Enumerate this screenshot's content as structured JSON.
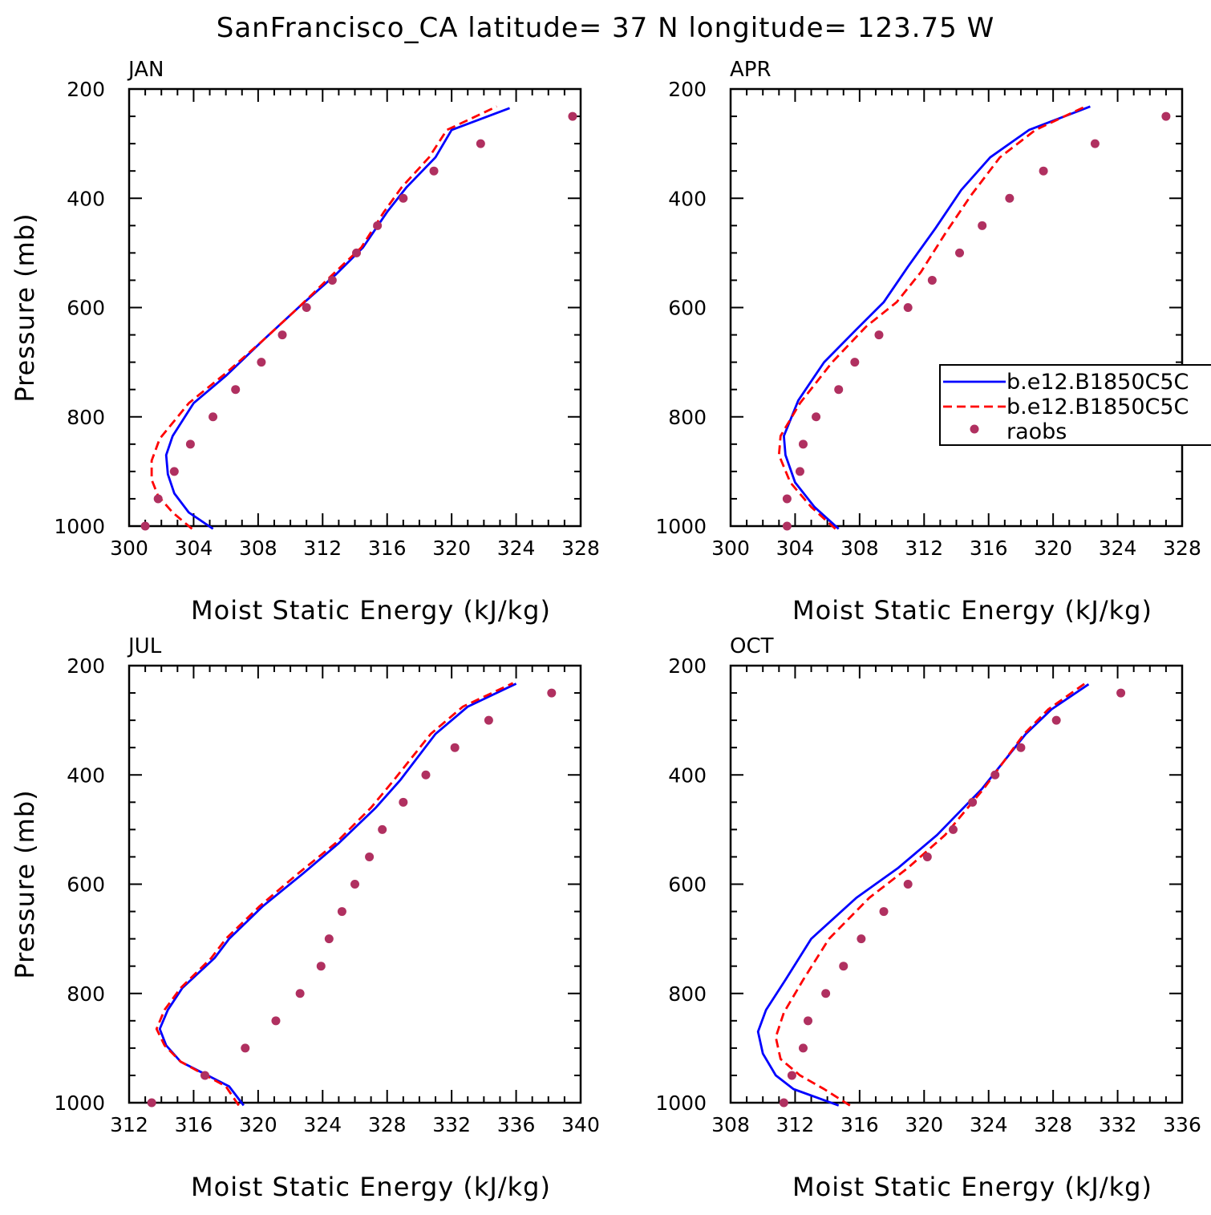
{
  "title": "SanFrancisco_CA  latitude= 37 N longitude= 123.75 W",
  "legend": [
    {
      "label": "b.e12.B1850C5C",
      "style": "solid",
      "color": "#0000ff"
    },
    {
      "label": "b.e12.B1850C5C",
      "style": "dashed",
      "color": "#ff0000"
    },
    {
      "label": "raobs",
      "style": "dot",
      "color": "#b03060"
    }
  ],
  "colors": {
    "model1": "#0000ff",
    "model2": "#ff0000",
    "raobs": "#b03060"
  },
  "chart_data": [
    {
      "type": "line",
      "panel_label": "JAN",
      "xlabel": "Moist Static Energy (kJ/kg)",
      "ylabel": "Pressure (mb)",
      "xlim": [
        300,
        328
      ],
      "ylim": [
        1000,
        200
      ],
      "y_inverted": true,
      "xticks": [
        300,
        304,
        308,
        312,
        316,
        320,
        324,
        328
      ],
      "yticks": [
        200,
        400,
        600,
        800,
        1000
      ],
      "series": [
        {
          "name": "b.e12.B1850C5C",
          "style": "solid",
          "points": [
            [
              305.2,
              1005
            ],
            [
              303.7,
              975
            ],
            [
              302.8,
              940
            ],
            [
              302.4,
              905
            ],
            [
              302.3,
              870
            ],
            [
              302.7,
              835
            ],
            [
              304.0,
              775
            ],
            [
              306.0,
              725
            ],
            [
              308.3,
              660
            ],
            [
              310.5,
              600
            ],
            [
              312.8,
              540
            ],
            [
              314.5,
              490
            ],
            [
              316.0,
              425
            ],
            [
              317.2,
              380
            ],
            [
              319.0,
              325
            ],
            [
              320.0,
              275
            ],
            [
              323.6,
              235
            ]
          ]
        },
        {
          "name": "b.e12.B1850C5C",
          "style": "dashed",
          "points": [
            [
              303.9,
              1005
            ],
            [
              302.7,
              975
            ],
            [
              301.8,
              945
            ],
            [
              301.4,
              915
            ],
            [
              301.4,
              880
            ],
            [
              301.9,
              840
            ],
            [
              303.7,
              775
            ],
            [
              306.0,
              720
            ],
            [
              308.3,
              660
            ],
            [
              310.5,
              600
            ],
            [
              312.6,
              540
            ],
            [
              314.4,
              490
            ],
            [
              315.8,
              425
            ],
            [
              316.9,
              380
            ],
            [
              318.6,
              325
            ],
            [
              319.7,
              275
            ],
            [
              322.8,
              232
            ]
          ]
        },
        {
          "name": "raobs",
          "style": "dots",
          "points": [
            [
              301.0,
              1000
            ],
            [
              301.8,
              950
            ],
            [
              302.8,
              900
            ],
            [
              303.8,
              850
            ],
            [
              305.2,
              800
            ],
            [
              306.6,
              750
            ],
            [
              308.2,
              700
            ],
            [
              309.5,
              650
            ],
            [
              311.0,
              600
            ],
            [
              312.6,
              550
            ],
            [
              314.1,
              500
            ],
            [
              315.4,
              450
            ],
            [
              317.0,
              400
            ],
            [
              318.9,
              350
            ],
            [
              321.8,
              300
            ],
            [
              327.5,
              250
            ]
          ]
        }
      ]
    },
    {
      "type": "line",
      "panel_label": "APR",
      "xlabel": "Moist Static Energy (kJ/kg)",
      "ylabel": "",
      "xlim": [
        300,
        328
      ],
      "ylim": [
        1000,
        200
      ],
      "y_inverted": true,
      "xticks": [
        300,
        304,
        308,
        312,
        316,
        320,
        324,
        328
      ],
      "yticks": [
        200,
        400,
        600,
        800,
        1000
      ],
      "series": [
        {
          "name": "b.e12.B1850C5C",
          "style": "solid",
          "points": [
            [
              306.7,
              1005
            ],
            [
              305.2,
              965
            ],
            [
              304.0,
              920
            ],
            [
              303.4,
              870
            ],
            [
              303.3,
              835
            ],
            [
              304.2,
              770
            ],
            [
              305.8,
              700
            ],
            [
              307.8,
              640
            ],
            [
              309.5,
              590
            ],
            [
              311.0,
              525
            ],
            [
              312.7,
              455
            ],
            [
              314.3,
              385
            ],
            [
              316.1,
              325
            ],
            [
              318.5,
              275
            ],
            [
              322.3,
              232
            ]
          ]
        },
        {
          "name": "b.e12.B1850C5C",
          "style": "dashed",
          "points": [
            [
              306.5,
              1005
            ],
            [
              305.0,
              965
            ],
            [
              303.7,
              920
            ],
            [
              303.0,
              870
            ],
            [
              303.1,
              835
            ],
            [
              304.3,
              775
            ],
            [
              306.3,
              700
            ],
            [
              308.4,
              635
            ],
            [
              310.3,
              590
            ],
            [
              311.8,
              535
            ],
            [
              313.3,
              465
            ],
            [
              314.9,
              395
            ],
            [
              316.7,
              325
            ],
            [
              318.9,
              275
            ],
            [
              322.0,
              232
            ]
          ]
        },
        {
          "name": "raobs",
          "style": "dots",
          "points": [
            [
              303.5,
              1000
            ],
            [
              303.5,
              950
            ],
            [
              304.3,
              900
            ],
            [
              304.5,
              850
            ],
            [
              305.3,
              800
            ],
            [
              306.7,
              750
            ],
            [
              307.7,
              700
            ],
            [
              309.2,
              650
            ],
            [
              311.0,
              600
            ],
            [
              312.5,
              550
            ],
            [
              314.2,
              500
            ],
            [
              315.6,
              450
            ],
            [
              317.3,
              400
            ],
            [
              319.4,
              350
            ],
            [
              322.6,
              300
            ],
            [
              327.0,
              250
            ]
          ]
        }
      ]
    },
    {
      "type": "line",
      "panel_label": "JUL",
      "xlabel": "Moist Static Energy (kJ/kg)",
      "ylabel": "Pressure (mb)",
      "xlim": [
        312,
        340
      ],
      "ylim": [
        1000,
        200
      ],
      "y_inverted": true,
      "xticks": [
        312,
        316,
        320,
        324,
        328,
        332,
        336,
        340
      ],
      "yticks": [
        200,
        400,
        600,
        800,
        1000
      ],
      "series": [
        {
          "name": "b.e12.B1850C5C",
          "style": "solid",
          "points": [
            [
              319.1,
              1005
            ],
            [
              318.2,
              970
            ],
            [
              315.2,
              925
            ],
            [
              314.3,
              895
            ],
            [
              313.9,
              865
            ],
            [
              314.4,
              830
            ],
            [
              315.3,
              790
            ],
            [
              317.3,
              735
            ],
            [
              318.2,
              700
            ],
            [
              320.3,
              640
            ],
            [
              322.8,
              580
            ],
            [
              325.0,
              525
            ],
            [
              327.3,
              460
            ],
            [
              328.8,
              410
            ],
            [
              331.0,
              325
            ],
            [
              333.0,
              275
            ],
            [
              336.0,
              233
            ]
          ]
        },
        {
          "name": "b.e12.B1850C5C",
          "style": "dashed",
          "points": [
            [
              318.8,
              1005
            ],
            [
              318.0,
              970
            ],
            [
              315.2,
              925
            ],
            [
              314.2,
              895
            ],
            [
              313.7,
              865
            ],
            [
              314.2,
              830
            ],
            [
              315.2,
              790
            ],
            [
              317.1,
              735
            ],
            [
              318.0,
              700
            ],
            [
              320.1,
              640
            ],
            [
              322.5,
              580
            ],
            [
              324.8,
              525
            ],
            [
              327.0,
              460
            ],
            [
              328.4,
              410
            ],
            [
              330.7,
              325
            ],
            [
              332.7,
              275
            ],
            [
              335.8,
              232
            ]
          ]
        },
        {
          "name": "raobs",
          "style": "dots",
          "points": [
            [
              313.4,
              1000
            ],
            [
              316.7,
              950
            ],
            [
              319.2,
              900
            ],
            [
              321.1,
              850
            ],
            [
              322.6,
              800
            ],
            [
              323.9,
              750
            ],
            [
              324.4,
              700
            ],
            [
              325.2,
              650
            ],
            [
              326.0,
              600
            ],
            [
              326.9,
              550
            ],
            [
              327.7,
              500
            ],
            [
              329.0,
              450
            ],
            [
              330.4,
              400
            ],
            [
              332.2,
              350
            ],
            [
              334.3,
              300
            ],
            [
              338.2,
              250
            ]
          ]
        }
      ]
    },
    {
      "type": "line",
      "panel_label": "OCT",
      "xlabel": "Moist Static Energy (kJ/kg)",
      "ylabel": "",
      "xlim": [
        308,
        336
      ],
      "ylim": [
        1000,
        200
      ],
      "y_inverted": true,
      "xticks": [
        308,
        312,
        316,
        320,
        324,
        328,
        332,
        336
      ],
      "yticks": [
        200,
        400,
        600,
        800,
        1000
      ],
      "series": [
        {
          "name": "b.e12.B1850C5C",
          "style": "solid",
          "points": [
            [
              314.7,
              1005
            ],
            [
              311.9,
              975
            ],
            [
              310.8,
              950
            ],
            [
              310.0,
              910
            ],
            [
              309.7,
              870
            ],
            [
              310.2,
              830
            ],
            [
              311.4,
              775
            ],
            [
              313.0,
              700
            ],
            [
              315.8,
              625
            ],
            [
              318.4,
              570
            ],
            [
              320.8,
              510
            ],
            [
              323.6,
              425
            ],
            [
              326.3,
              325
            ],
            [
              327.9,
              280
            ],
            [
              330.2,
              234
            ]
          ]
        },
        {
          "name": "b.e12.B1850C5C",
          "style": "dashed",
          "points": [
            [
              315.4,
              1005
            ],
            [
              313.8,
              975
            ],
            [
              312.3,
              950
            ],
            [
              311.1,
              920
            ],
            [
              310.8,
              880
            ],
            [
              311.3,
              835
            ],
            [
              312.5,
              775
            ],
            [
              314.1,
              700
            ],
            [
              316.6,
              625
            ],
            [
              319.0,
              570
            ],
            [
              321.3,
              510
            ],
            [
              323.7,
              425
            ],
            [
              326.2,
              325
            ],
            [
              327.7,
              280
            ],
            [
              330.0,
              232
            ]
          ]
        },
        {
          "name": "raobs",
          "style": "dots",
          "points": [
            [
              311.3,
              1000
            ],
            [
              311.8,
              950
            ],
            [
              312.5,
              900
            ],
            [
              312.8,
              850
            ],
            [
              313.9,
              800
            ],
            [
              315.0,
              750
            ],
            [
              316.1,
              700
            ],
            [
              317.5,
              650
            ],
            [
              319.0,
              600
            ],
            [
              320.2,
              550
            ],
            [
              321.8,
              500
            ],
            [
              323.0,
              450
            ],
            [
              324.4,
              400
            ],
            [
              326.0,
              350
            ],
            [
              328.2,
              300
            ],
            [
              332.2,
              250
            ]
          ]
        }
      ]
    }
  ]
}
